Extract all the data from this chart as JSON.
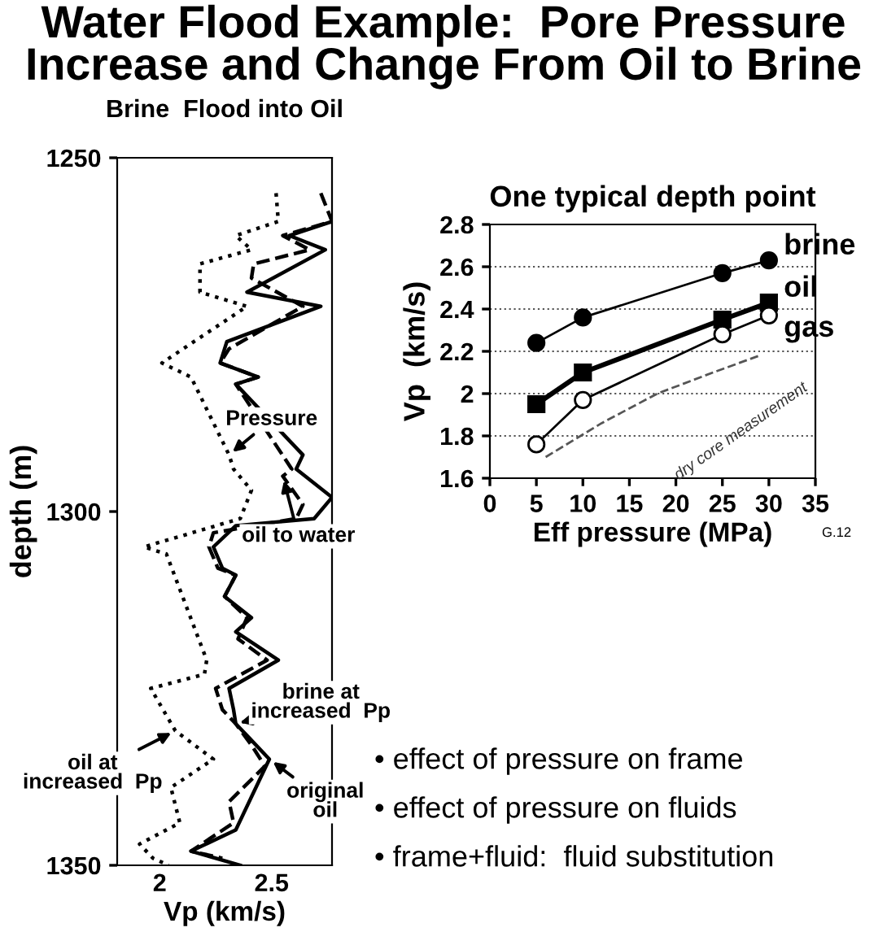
{
  "chart_data": [
    {
      "type": "line",
      "title": "Water Flood Example:  Pore Pressure\nIncrease and Change From Oil to Brine",
      "subtitle": "Brine  Flood into Oil",
      "xlabel": "Vp (km/s)",
      "ylabel": "depth (m)",
      "xlim": [
        1.81,
        2.77
      ],
      "xticks": [
        2,
        2.5
      ],
      "ylim": [
        1350,
        1250
      ],
      "yticks": [
        1250,
        1300,
        1350
      ],
      "grid": false,
      "legend": false,
      "marker": "none",
      "series": [
        {
          "color": "#000000",
          "line_style": "dotted",
          "x": [
            2.52,
            2.53,
            2.34,
            2.41,
            2.18,
            2.18,
            2.39,
            2.01,
            2.14,
            2.31,
            2.33,
            2.41,
            2.36,
            1.93,
            2.03,
            2.21,
            2.2,
            1.96,
            2.07,
            2.24,
            2.05,
            2.09,
            1.91,
            1.97,
            2.04
          ],
          "values": [
            1255,
            1259,
            1261,
            1263,
            1265,
            1269,
            1271,
            1279,
            1281,
            1292,
            1294,
            1297,
            1301,
            1305,
            1306,
            1321,
            1323,
            1325,
            1331,
            1335,
            1339,
            1344,
            1347,
            1349,
            1350
          ]
        },
        {
          "color": "#000000",
          "line_style": "dashed",
          "x": [
            2.72,
            2.77,
            2.55,
            2.67,
            2.42,
            2.41,
            2.64,
            2.31,
            2.27,
            2.44,
            2.34,
            2.59,
            2.55,
            2.64,
            2.61,
            2.24,
            2.22,
            2.26,
            2.34,
            2.29,
            2.39,
            2.35,
            2.48,
            2.25,
            2.28,
            2.34,
            2.41,
            2.47,
            2.31,
            2.33,
            2.14,
            2.28
          ],
          "values": [
            1255,
            1259,
            1261,
            1263,
            1265,
            1267,
            1271,
            1277,
            1279,
            1281,
            1282,
            1294,
            1295,
            1299,
            1301,
            1303,
            1305,
            1308,
            1309,
            1312,
            1315,
            1318,
            1321,
            1325,
            1328,
            1330,
            1333,
            1336,
            1341,
            1344,
            1348,
            1349
          ]
        },
        {
          "color": "#000000",
          "line_style": "solid",
          "x": [
            2.77,
            2.58,
            2.74,
            2.39,
            2.72,
            2.3,
            2.27,
            2.44,
            2.34,
            2.64,
            2.61,
            2.77,
            2.69,
            2.34,
            2.24,
            2.28,
            2.34,
            2.29,
            2.41,
            2.34,
            2.53,
            2.31,
            2.33,
            2.34,
            2.4,
            2.49,
            2.34,
            2.14,
            2.36
          ],
          "values": [
            1259,
            1261,
            1263,
            1269,
            1271,
            1276,
            1279,
            1281,
            1282,
            1292,
            1294,
            1298,
            1301,
            1302,
            1305,
            1308,
            1309,
            1312,
            1315,
            1317,
            1321,
            1325,
            1328,
            1330,
            1332,
            1335,
            1345,
            1348,
            1350
          ]
        }
      ],
      "annotations": [
        {
          "text": "Pressure",
          "x": 2.31,
          "y": 1292
        },
        {
          "text": "oil to water",
          "x": 2.55,
          "y": 1295
        },
        {
          "text": "brine at\nincreased  Pp",
          "x": 2.34,
          "y": 1330
        },
        {
          "text": "oil at\nincreased  Pp",
          "x": 2.07,
          "y": 1331
        },
        {
          "text": "original\noil",
          "x": 2.49,
          "y": 1335
        }
      ]
    },
    {
      "type": "line",
      "title": "One typical depth point",
      "xlabel": "Eff pressure (MPa)",
      "ylabel": "Vp  (km/s)",
      "x": [
        5,
        10,
        25,
        30
      ],
      "xlim": [
        0,
        35
      ],
      "xticks": [
        0,
        5,
        10,
        15,
        20,
        25,
        30,
        35
      ],
      "ylim": [
        1.6,
        2.8
      ],
      "yticks": [
        1.6,
        1.8,
        2,
        2.2,
        2.4,
        2.6,
        2.8
      ],
      "grid": "y",
      "legend": false,
      "series": [
        {
          "name": "brine",
          "color": "#000000",
          "marker": "circle",
          "values": [
            2.24,
            2.36,
            2.57,
            2.63
          ]
        },
        {
          "name": "oil",
          "color": "#000000",
          "marker": "square",
          "values": [
            1.95,
            2.1,
            2.35,
            2.43
          ]
        },
        {
          "name": "gas",
          "color": "#000000",
          "marker": "circle",
          "values": [
            1.76,
            1.97,
            2.28,
            2.37
          ]
        },
        {
          "color": "#555555",
          "marker": "none",
          "line_style": "dashed",
          "x": [
            6,
            12,
            18,
            24,
            29
          ],
          "values": [
            1.7,
            1.86,
            2.0,
            2.1,
            2.18
          ]
        }
      ],
      "annotations": [
        "dry core measurement",
        "G.12",
        "• effect of pressure on frame",
        "• effect of pressure on fluids",
        "• frame+fluid:  fluid substitution"
      ]
    }
  ]
}
